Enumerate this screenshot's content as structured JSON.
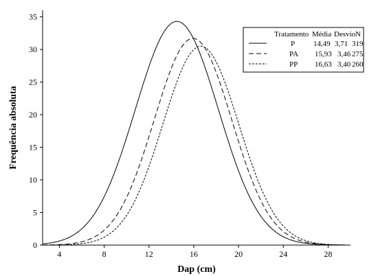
{
  "chart_data": {
    "type": "line",
    "xlabel": "Dap (cm)",
    "ylabel": "Frequência absoluta",
    "xlim": [
      2.5,
      30
    ],
    "ylim": [
      0,
      36
    ],
    "xticks": [
      4,
      8,
      12,
      16,
      20,
      24,
      28
    ],
    "yticks": [
      0,
      5,
      10,
      15,
      20,
      25,
      30,
      35
    ],
    "grid": false,
    "legend_position": "top-right",
    "legend": {
      "headers": [
        "Tratamento",
        "Média",
        "Desvio",
        "N"
      ],
      "rows": [
        {
          "name": "P",
          "media": "14,49",
          "desvio": "3,71",
          "n": "319",
          "style": "solid"
        },
        {
          "name": "PA",
          "media": "15,93",
          "desvio": "3,46",
          "n": "275",
          "style": "dashed"
        },
        {
          "name": "PP",
          "media": "16,63",
          "desvio": "3,40",
          "n": "260",
          "style": "dotted"
        }
      ]
    },
    "series": [
      {
        "name": "P",
        "mean": 14.49,
        "sd": 3.71,
        "n": 319,
        "peak": 34.3
      },
      {
        "name": "PA",
        "mean": 15.93,
        "sd": 3.46,
        "n": 275,
        "peak": 31.7
      },
      {
        "name": "PP",
        "mean": 16.63,
        "sd": 3.4,
        "n": 260,
        "peak": 30.5
      }
    ]
  }
}
